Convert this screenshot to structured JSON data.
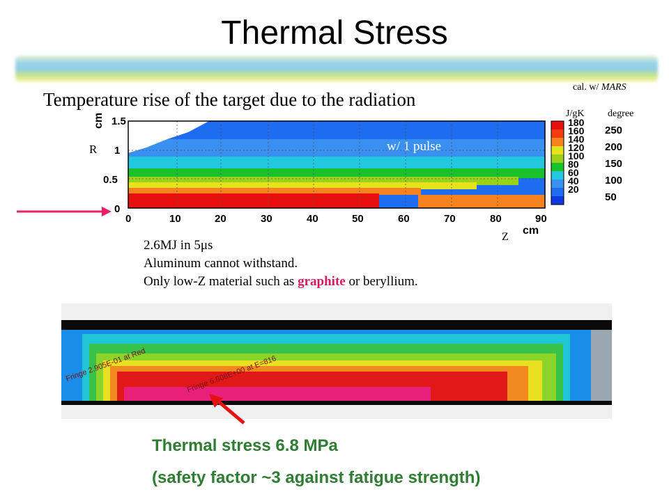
{
  "slide": {
    "title": "Thermal Stress",
    "subtitle": "Temperature rise of the target due to the radiation",
    "calc_note_prefix": "cal. w/",
    "calc_note_code": "MARS"
  },
  "plot": {
    "r_axis_label": "R",
    "r_unit": "cm",
    "z_axis_label": "Z",
    "z_unit": "cm",
    "annotation": "w/ 1 pulse",
    "r_ticks": [
      "1.5",
      "1",
      "0.5",
      "0"
    ],
    "z_ticks": [
      "0",
      "10",
      "20",
      "30",
      "40",
      "50",
      "60",
      "70",
      "80",
      "90"
    ],
    "colorbar_unit_left": "J/gK",
    "colorbar_unit_right": "degree",
    "colorbar_left_labels": [
      "180",
      "160",
      "140",
      "120",
      "100",
      "80",
      "60",
      "40",
      "20"
    ],
    "colorbar_right_labels": [
      "250",
      "200",
      "150",
      "100",
      "50"
    ],
    "colors": {
      "red": "#e8100f",
      "orange": "#f5821f",
      "yellow": "#e6e21c",
      "green": "#19c22a",
      "cyan": "#22c8e0",
      "blue": "#1e6cf0"
    }
  },
  "notes": {
    "line1_prefix": "2.6MJ in 5",
    "line1_mu": "μ",
    "line1_suffix": "s",
    "line2": "Aluminum cannot withstand.",
    "line3_prefix": "Only low-Z material such as",
    "line3_highlight": "graphite",
    "line3_suffix": "or beryllium."
  },
  "stress_result": {
    "line1": "Thermal stress 6.8 MPa",
    "line2": "(safety factor ~3 against fatigue strength)",
    "fringe_label_left": "Fringe 2.905E-01 at Red",
    "fringe_label_mid": "Fringe 6.808E+00 at E=816"
  }
}
